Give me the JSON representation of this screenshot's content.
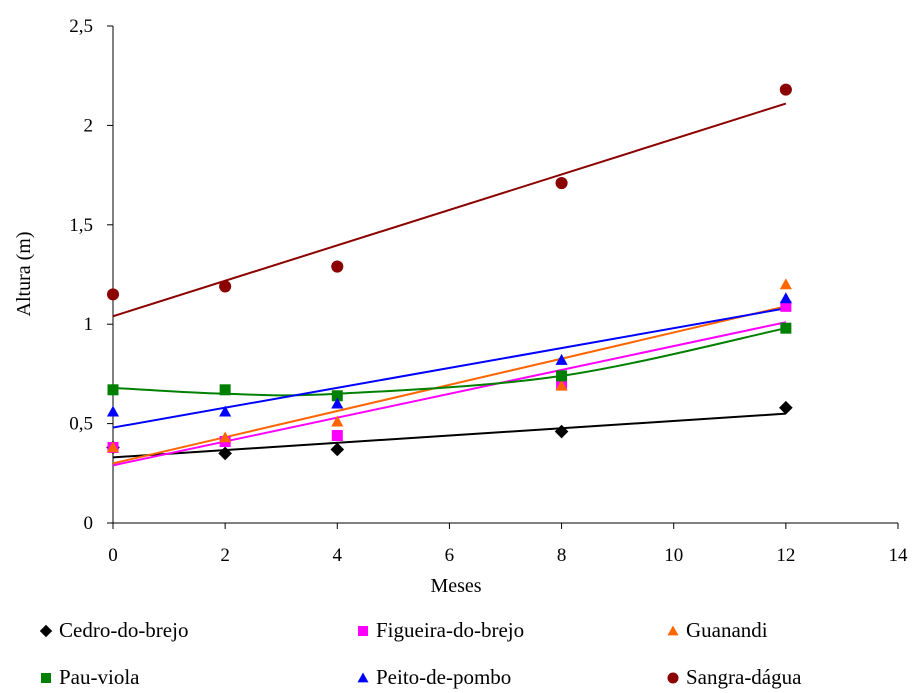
{
  "chart_data": {
    "type": "scatter",
    "xlabel": "Meses",
    "ylabel": "Altura (m)",
    "xlim": [
      0,
      14
    ],
    "ylim": [
      0,
      2.5
    ],
    "xticks": [
      0,
      2,
      4,
      6,
      8,
      10,
      12,
      14
    ],
    "yticks": [
      0,
      0.5,
      1,
      1.5,
      2,
      2.5
    ],
    "xtick_labels": [
      "0",
      "2",
      "4",
      "6",
      "8",
      "10",
      "12",
      "14"
    ],
    "ytick_labels": [
      "0",
      "0,5",
      "1",
      "1,5",
      "2",
      "2,5"
    ],
    "grid": false,
    "legend_position": "bottom",
    "series": [
      {
        "name": "Cedro-do-brejo",
        "marker": "diamond",
        "color": "#000000",
        "trend_color": "#000000",
        "x": [
          0,
          2,
          4,
          8,
          12
        ],
        "y": [
          0.38,
          0.35,
          0.37,
          0.46,
          0.58
        ],
        "trend": {
          "type": "linear",
          "start": 0.33,
          "end": 0.55
        }
      },
      {
        "name": "Figueira-do-brejo",
        "marker": "square",
        "color": "#ff00ff",
        "trend_color": "#ff00ff",
        "x": [
          0,
          2,
          4,
          8,
          12
        ],
        "y": [
          0.38,
          0.41,
          0.44,
          0.7,
          1.09
        ],
        "trend": {
          "type": "linear",
          "start": 0.29,
          "end": 1.01
        }
      },
      {
        "name": "Guanandi",
        "marker": "triangle",
        "color": "#ff6600",
        "trend_color": "#ff6600",
        "x": [
          0,
          2,
          4,
          8,
          12
        ],
        "y": [
          0.38,
          0.43,
          0.51,
          0.69,
          1.2
        ],
        "trend": {
          "type": "linear",
          "start": 0.3,
          "end": 1.09
        }
      },
      {
        "name": "Pau-viola",
        "marker": "square",
        "color": "#008000",
        "trend_color": "#008000",
        "x": [
          0,
          2,
          4,
          8,
          12
        ],
        "y": [
          0.67,
          0.67,
          0.64,
          0.74,
          0.98
        ],
        "trend": {
          "type": "polynomial",
          "points_x": [
            0,
            2,
            4,
            8,
            12
          ],
          "points_y": [
            0.68,
            0.65,
            0.65,
            0.74,
            0.98
          ]
        }
      },
      {
        "name": "Peito-de-pombo",
        "marker": "triangle",
        "color": "#0000ff",
        "trend_color": "#0000ff",
        "x": [
          0,
          2,
          4,
          8,
          12
        ],
        "y": [
          0.56,
          0.56,
          0.6,
          0.82,
          1.13
        ],
        "trend": {
          "type": "linear",
          "start": 0.48,
          "end": 1.08
        }
      },
      {
        "name": "Sangra-dágua",
        "marker": "circle",
        "color": "#8b0000",
        "trend_color": "#8b0000",
        "x": [
          0,
          2,
          4,
          8,
          12
        ],
        "y": [
          1.15,
          1.19,
          1.29,
          1.71,
          2.18
        ],
        "trend": {
          "type": "linear",
          "start": 1.04,
          "end": 2.11
        }
      }
    ]
  }
}
